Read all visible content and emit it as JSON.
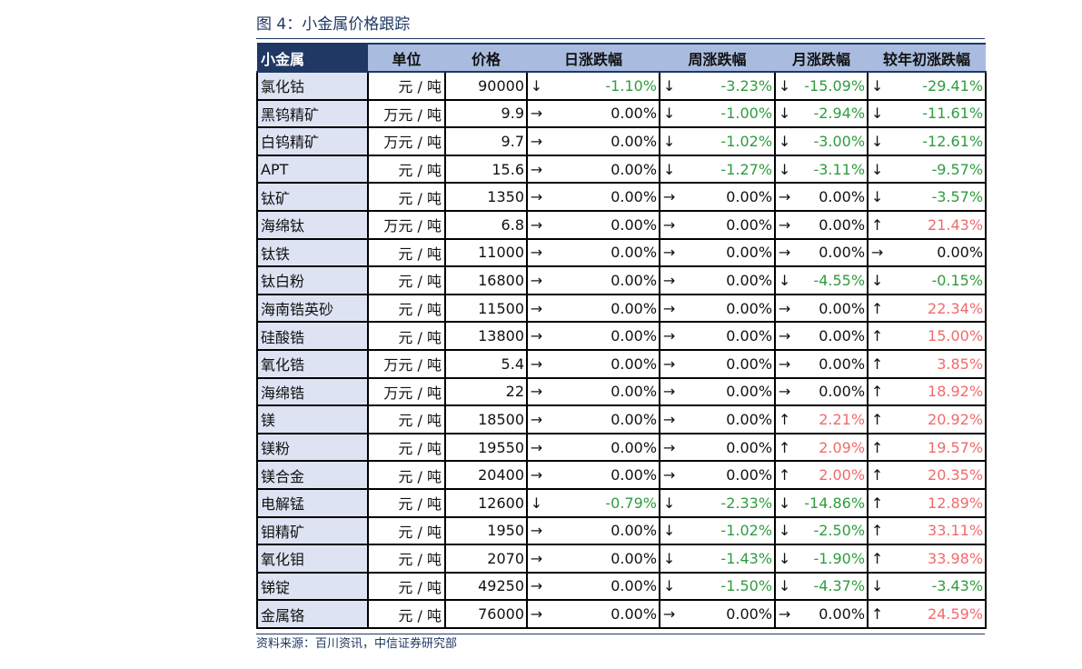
{
  "title": "图 4：小金属价格跟踪",
  "headers": [
    "小金属",
    "单位",
    "价格",
    "日涨跌幅",
    "周涨跌幅",
    "月涨跌幅",
    "较年初涨跌幅"
  ],
  "colors": {
    "header_dark": "#1f3864",
    "header_light": "#a9bce0",
    "name_cell": "#dde3f2",
    "up": "#ff3333",
    "down": "#1a9a3a"
  },
  "rows": [
    {
      "name": "氯化钴",
      "unit": "元 / 吨",
      "price": "90000",
      "day": [
        "down",
        "-1.10%"
      ],
      "week": [
        "down",
        "-3.23%"
      ],
      "month": [
        "down",
        "-15.09%"
      ],
      "ytd": [
        "down",
        "-29.41%"
      ]
    },
    {
      "name": "黑钨精矿",
      "unit": "万元 / 吨",
      "price": "9.9",
      "day": [
        "flat",
        "0.00%"
      ],
      "week": [
        "down",
        "-1.00%"
      ],
      "month": [
        "down",
        "-2.94%"
      ],
      "ytd": [
        "down",
        "-11.61%"
      ]
    },
    {
      "name": "白钨精矿",
      "unit": "万元 / 吨",
      "price": "9.7",
      "day": [
        "flat",
        "0.00%"
      ],
      "week": [
        "down",
        "-1.02%"
      ],
      "month": [
        "down",
        "-3.00%"
      ],
      "ytd": [
        "down",
        "-12.61%"
      ]
    },
    {
      "name": "APT",
      "unit": "元 / 吨",
      "price": "15.6",
      "day": [
        "flat",
        "0.00%"
      ],
      "week": [
        "down",
        "-1.27%"
      ],
      "month": [
        "down",
        "-3.11%"
      ],
      "ytd": [
        "down",
        "-9.57%"
      ]
    },
    {
      "name": "钛矿",
      "unit": "元 / 吨",
      "price": "1350",
      "day": [
        "flat",
        "0.00%"
      ],
      "week": [
        "flat",
        "0.00%"
      ],
      "month": [
        "flat",
        "0.00%"
      ],
      "ytd": [
        "down",
        "-3.57%"
      ]
    },
    {
      "name": "海绵钛",
      "unit": "万元 / 吨",
      "price": "6.8",
      "day": [
        "flat",
        "0.00%"
      ],
      "week": [
        "flat",
        "0.00%"
      ],
      "month": [
        "flat",
        "0.00%"
      ],
      "ytd": [
        "up",
        "21.43%"
      ]
    },
    {
      "name": "钛铁",
      "unit": "元 / 吨",
      "price": "11000",
      "day": [
        "flat",
        "0.00%"
      ],
      "week": [
        "flat",
        "0.00%"
      ],
      "month": [
        "flat",
        "0.00%"
      ],
      "ytd": [
        "flat",
        "0.00%"
      ]
    },
    {
      "name": "钛白粉",
      "unit": "元 / 吨",
      "price": "16800",
      "day": [
        "flat",
        "0.00%"
      ],
      "week": [
        "flat",
        "0.00%"
      ],
      "month": [
        "down",
        "-4.55%"
      ],
      "ytd": [
        "down",
        "-0.15%"
      ]
    },
    {
      "name": "海南锆英砂",
      "unit": "元 / 吨",
      "price": "11500",
      "day": [
        "flat",
        "0.00%"
      ],
      "week": [
        "flat",
        "0.00%"
      ],
      "month": [
        "flat",
        "0.00%"
      ],
      "ytd": [
        "up",
        "22.34%"
      ]
    },
    {
      "name": "硅酸锆",
      "unit": "元 / 吨",
      "price": "13800",
      "day": [
        "flat",
        "0.00%"
      ],
      "week": [
        "flat",
        "0.00%"
      ],
      "month": [
        "flat",
        "0.00%"
      ],
      "ytd": [
        "up",
        "15.00%"
      ]
    },
    {
      "name": "氧化锆",
      "unit": "万元 / 吨",
      "price": "5.4",
      "day": [
        "flat",
        "0.00%"
      ],
      "week": [
        "flat",
        "0.00%"
      ],
      "month": [
        "flat",
        "0.00%"
      ],
      "ytd": [
        "up",
        "3.85%"
      ]
    },
    {
      "name": "海绵锆",
      "unit": "万元 / 吨",
      "price": "22",
      "day": [
        "flat",
        "0.00%"
      ],
      "week": [
        "flat",
        "0.00%"
      ],
      "month": [
        "flat",
        "0.00%"
      ],
      "ytd": [
        "up",
        "18.92%"
      ]
    },
    {
      "name": "镁",
      "unit": "元 / 吨",
      "price": "18500",
      "day": [
        "flat",
        "0.00%"
      ],
      "week": [
        "flat",
        "0.00%"
      ],
      "month": [
        "up",
        "2.21%"
      ],
      "ytd": [
        "up",
        "20.92%"
      ]
    },
    {
      "name": "镁粉",
      "unit": "元 / 吨",
      "price": "19550",
      "day": [
        "flat",
        "0.00%"
      ],
      "week": [
        "flat",
        "0.00%"
      ],
      "month": [
        "up",
        "2.09%"
      ],
      "ytd": [
        "up",
        "19.57%"
      ]
    },
    {
      "name": "镁合金",
      "unit": "元 / 吨",
      "price": "20400",
      "day": [
        "flat",
        "0.00%"
      ],
      "week": [
        "flat",
        "0.00%"
      ],
      "month": [
        "up",
        "2.00%"
      ],
      "ytd": [
        "up",
        "20.35%"
      ]
    },
    {
      "name": "电解锰",
      "unit": "元 / 吨",
      "price": "12600",
      "day": [
        "down",
        "-0.79%"
      ],
      "week": [
        "down",
        "-2.33%"
      ],
      "month": [
        "down",
        "-14.86%"
      ],
      "ytd": [
        "up",
        "12.89%"
      ]
    },
    {
      "name": "钼精矿",
      "unit": "元 / 吨",
      "price": "1950",
      "day": [
        "flat",
        "0.00%"
      ],
      "week": [
        "down",
        "-1.02%"
      ],
      "month": [
        "down",
        "-2.50%"
      ],
      "ytd": [
        "up",
        "33.11%"
      ]
    },
    {
      "name": "氧化钼",
      "unit": "元 / 吨",
      "price": "2070",
      "day": [
        "flat",
        "0.00%"
      ],
      "week": [
        "down",
        "-1.43%"
      ],
      "month": [
        "down",
        "-1.90%"
      ],
      "ytd": [
        "up",
        "33.98%"
      ]
    },
    {
      "name": "锑锭",
      "unit": "元 / 吨",
      "price": "49250",
      "day": [
        "flat",
        "0.00%"
      ],
      "week": [
        "down",
        "-1.50%"
      ],
      "month": [
        "down",
        "-4.37%"
      ],
      "ytd": [
        "down",
        "-3.43%"
      ]
    },
    {
      "name": "金属铬",
      "unit": "元 / 吨",
      "price": "76000",
      "day": [
        "flat",
        "0.00%"
      ],
      "week": [
        "flat",
        "0.00%"
      ],
      "month": [
        "flat",
        "0.00%"
      ],
      "ytd": [
        "up",
        "24.59%"
      ]
    }
  ],
  "arrow_glyphs": {
    "up": "↑",
    "down": "↓",
    "flat": "→"
  },
  "source": "资料来源：百川资讯，中信证券研究部"
}
